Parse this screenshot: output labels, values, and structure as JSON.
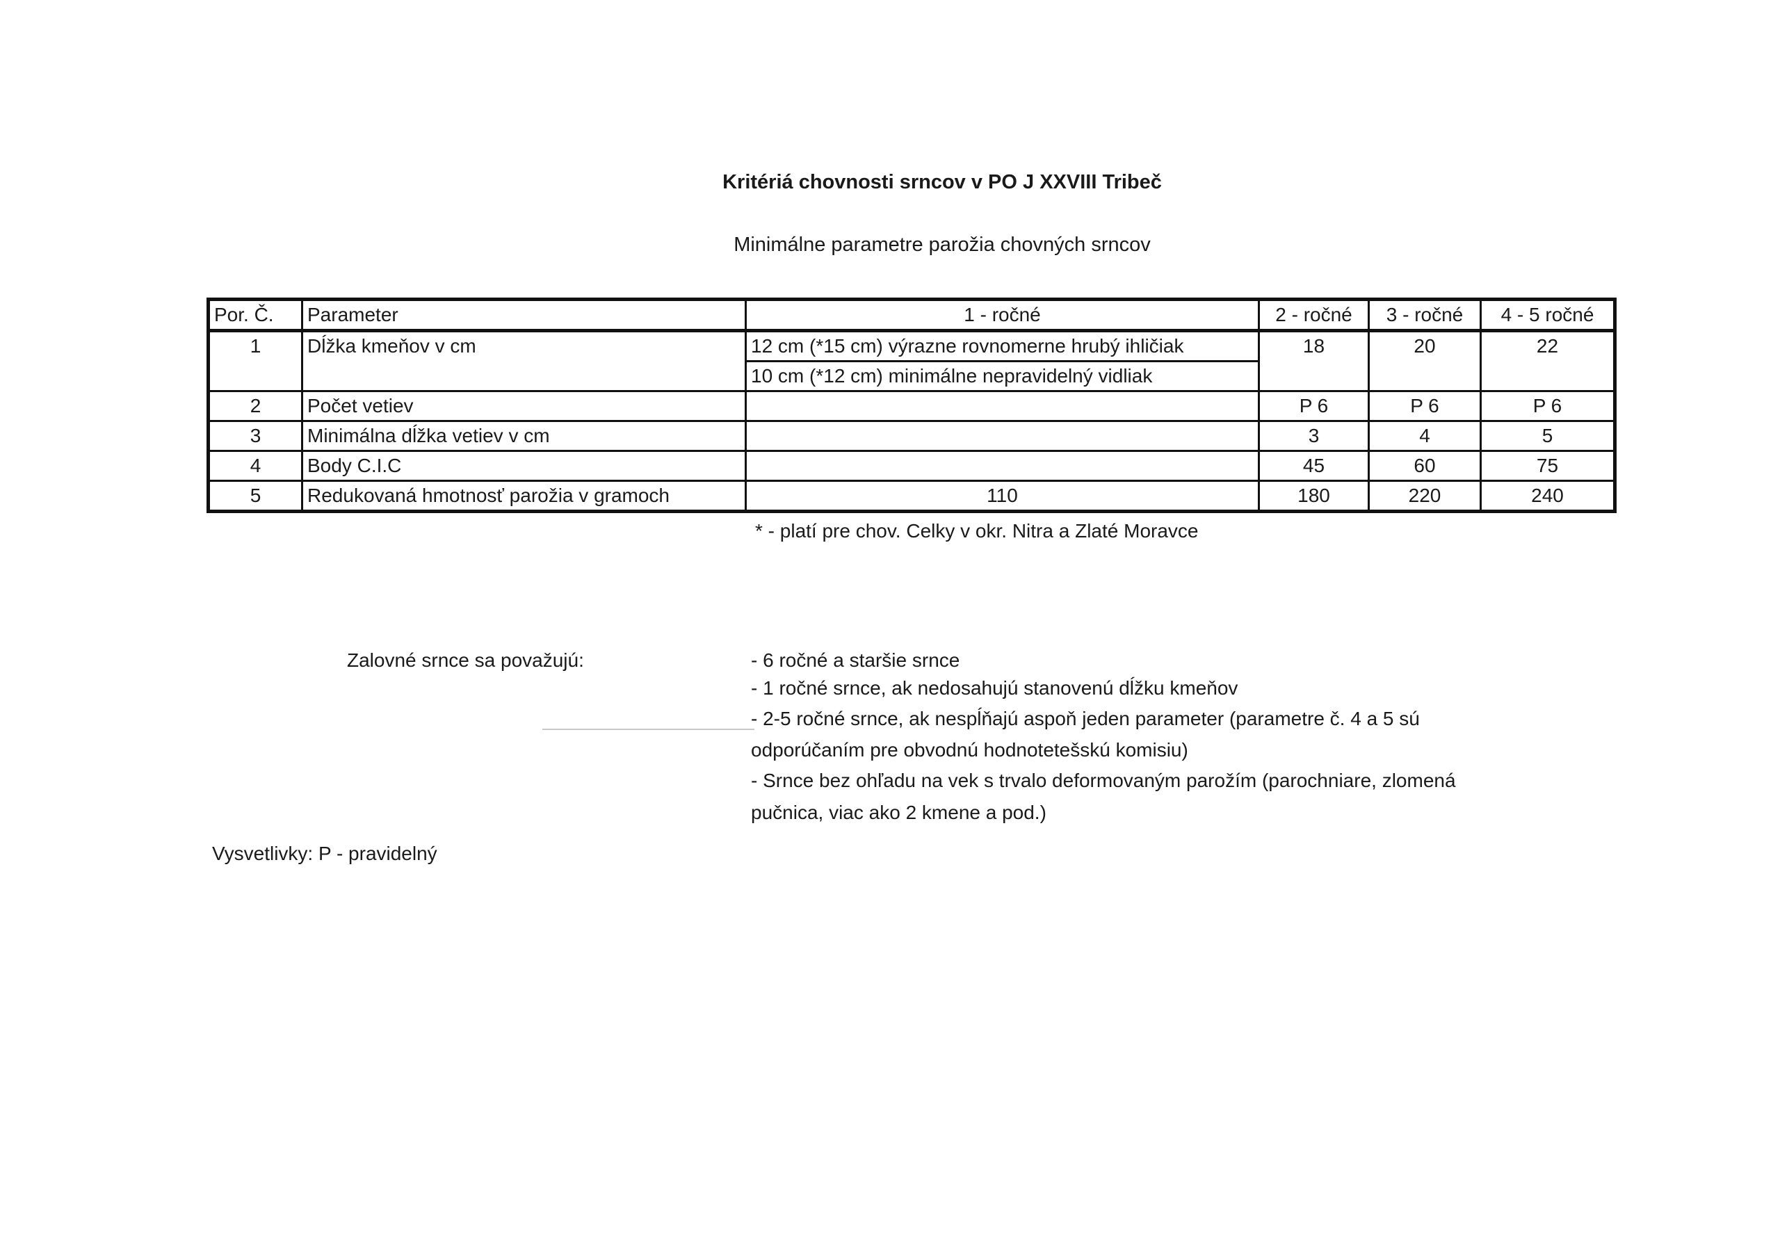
{
  "title": "Kritériá chovnosti srncov v PO J XXVIII Tribeč",
  "subtitle": "Minimálne parametre parožia chovných srncov",
  "table": {
    "headers": [
      "Por. Č.",
      "Parameter",
      "1 - ročné",
      "2 - ročné",
      "3 - ročné",
      "4 - 5 ročné"
    ],
    "rows": [
      {
        "no": "1",
        "param": "Dĺžka kmeňov v cm",
        "y1": [
          "12 cm (*15 cm) výrazne rovnomerne hrubý ihličiak",
          "10 cm (*12 cm) minimálne  nepravidelný vidliak"
        ],
        "y2": "18",
        "y3": "20",
        "y45": "22"
      },
      {
        "no": "2",
        "param": "Počet vetiev",
        "y1": "",
        "y2": "P 6",
        "y3": "P 6",
        "y45": "P 6"
      },
      {
        "no": "3",
        "param": "Minimálna dĺžka vetiev v cm",
        "y1": "",
        "y2": "3",
        "y3": "4",
        "y45": "5"
      },
      {
        "no": "4",
        "param": "Body C.I.C",
        "y1": "",
        "y2": "45",
        "y3": "60",
        "y45": "75"
      },
      {
        "no": "5",
        "param": "Redukovaná hmotnosť parožia v gramoch",
        "y1": "110",
        "y2": "180",
        "y3": "220",
        "y45": "240"
      }
    ]
  },
  "footnote": "* - platí pre chov. Celky v okr. Nitra a Zlaté Moravce",
  "culling": {
    "label": "Zalovné srnce sa považujú:",
    "items": [
      "- 6 ročné a staršie srnce",
      "- 1 ročné srnce, ak nedosahujú stanovenú dĺžku kmeňov",
      "- 2-5 ročné srnce, ak nespĺňajú aspoň jeden parameter (parametre č. 4 a 5 sú",
      "odporúčaním pre obvodnú hodnotetešskú komisiu)",
      "- Srnce bez ohľadu na vek s trvalo deformovaným parožím (parochniare, zlomená",
      "pučnica, viac ako 2 kmene a pod.)"
    ]
  },
  "legend": "Vysvetlivky: P - pravidelný"
}
